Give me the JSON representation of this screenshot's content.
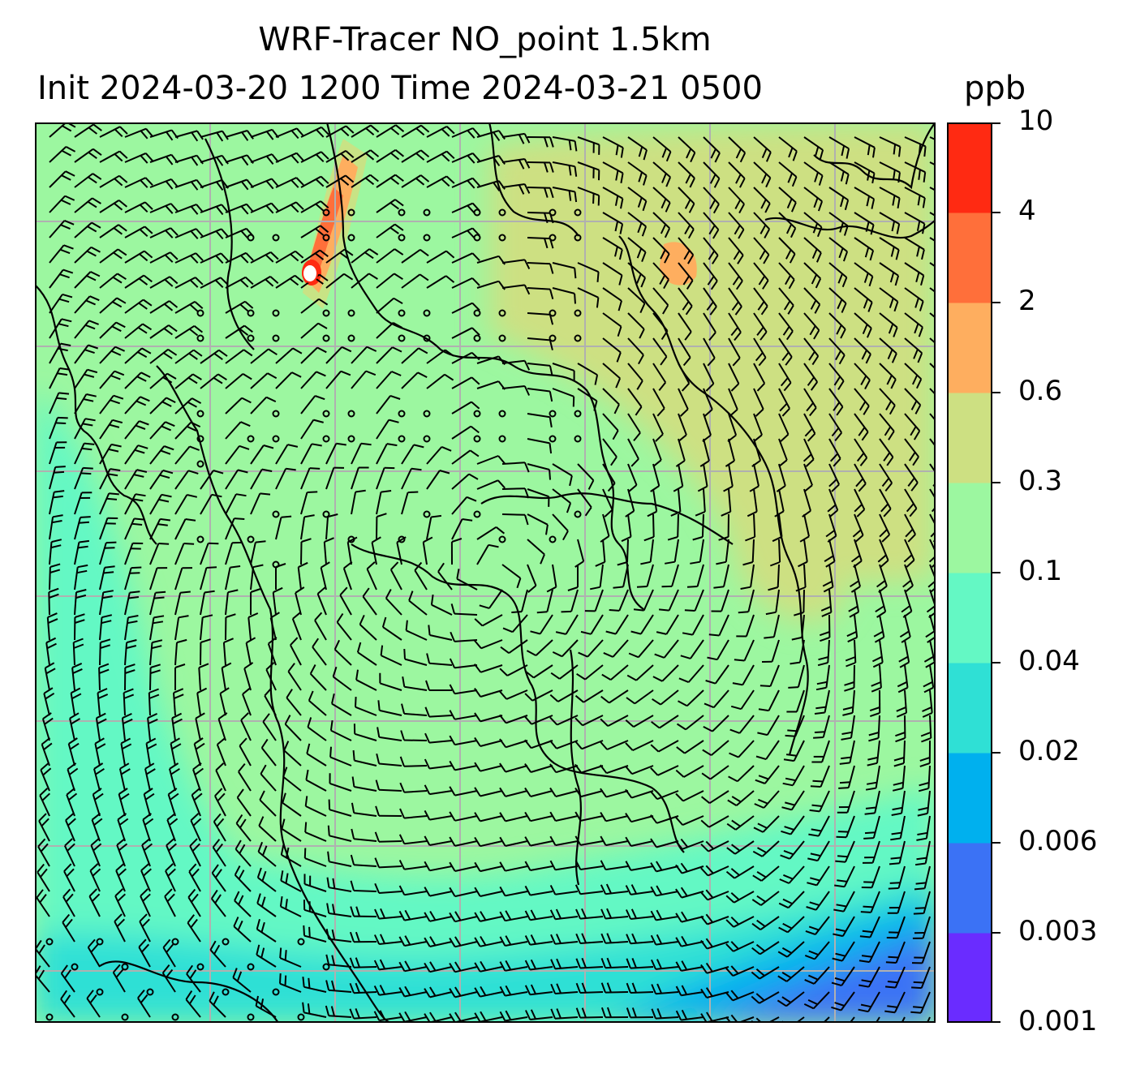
{
  "figure": {
    "title_line1": "WRF-Tracer NO_point 1.5km",
    "title_line2": "Init 2024-03-20 1200 Time 2024-03-21 0500",
    "unit": "ppb"
  },
  "colorbar": {
    "levels": [
      "0.001",
      "0.003",
      "0.006",
      "0.02",
      "0.04",
      "0.1",
      "0.3",
      "0.6",
      "2",
      "4",
      "10"
    ],
    "colors": [
      "#6a2cff",
      "#3b72f5",
      "#00b0ee",
      "#2fe0d5",
      "#64f8c4",
      "#9cf7a0",
      "#cde082",
      "#feae5f",
      "#ff6f3a",
      "#ff2a12"
    ]
  },
  "map": {
    "gridline_color": "#b0b0b0",
    "coastline_color": "#000000",
    "barb_color": "#000000",
    "source_marker_color": "#ffffff"
  }
}
